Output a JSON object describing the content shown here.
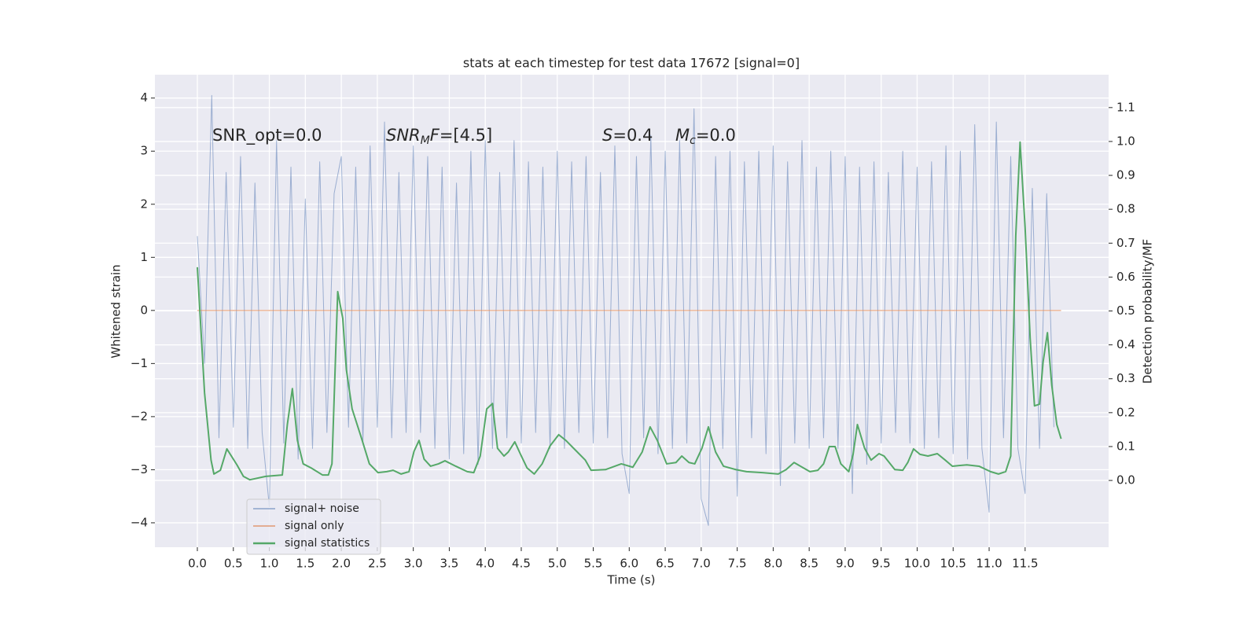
{
  "chart_data": {
    "type": "line",
    "title": "stats at each timestep for test data 17672 [signal=0]",
    "xlabel": "Time (s)",
    "ylabel": "Whitened strain",
    "y2label": "Detection probability/MF",
    "grid": true,
    "legend": "lower left",
    "xlim": [
      -0.59,
      12.66
    ],
    "ylim": [
      -4.46,
      4.44
    ],
    "y2lim": [
      -0.197,
      1.197
    ],
    "xticks": [
      {
        "value": 0,
        "label": "0.0"
      },
      {
        "value": 0.5,
        "label": "0.5"
      },
      {
        "value": 1,
        "label": "1.0"
      },
      {
        "value": 1.5,
        "label": "1.5"
      },
      {
        "value": 2,
        "label": "2.0"
      },
      {
        "value": 2.5,
        "label": "2.5"
      },
      {
        "value": 3,
        "label": "3.0"
      },
      {
        "value": 3.5,
        "label": "3.5"
      },
      {
        "value": 4,
        "label": "4.0"
      },
      {
        "value": 4.5,
        "label": "4.5"
      },
      {
        "value": 5,
        "label": "5.0"
      },
      {
        "value": 5.5,
        "label": "5.5"
      },
      {
        "value": 6,
        "label": "6.0"
      },
      {
        "value": 6.5,
        "label": "6.5"
      },
      {
        "value": 7,
        "label": "7.0"
      },
      {
        "value": 7.5,
        "label": "7.5"
      },
      {
        "value": 8,
        "label": "8.0"
      },
      {
        "value": 8.5,
        "label": "8.5"
      },
      {
        "value": 9,
        "label": "9.0"
      },
      {
        "value": 9.5,
        "label": "9.5"
      },
      {
        "value": 10,
        "label": "10.0"
      },
      {
        "value": 10.5,
        "label": "10.5"
      },
      {
        "value": 11,
        "label": "11.0"
      },
      {
        "value": 11.5,
        "label": "11.5"
      }
    ],
    "yticks": [
      {
        "value": -4,
        "label": "−4"
      },
      {
        "value": -3,
        "label": "−3"
      },
      {
        "value": -2,
        "label": "−2"
      },
      {
        "value": -1,
        "label": "−1"
      },
      0,
      1,
      2,
      3,
      4
    ],
    "y2ticks": [
      {
        "value": 0,
        "label": "0.0"
      },
      {
        "value": 0.1,
        "label": "0.1"
      },
      {
        "value": 0.2,
        "label": "0.2"
      },
      {
        "value": 0.3,
        "label": "0.3"
      },
      {
        "value": 0.4,
        "label": "0.4"
      },
      {
        "value": 0.5,
        "label": "0.5"
      },
      {
        "value": 0.6,
        "label": "0.6"
      },
      {
        "value": 0.7,
        "label": "0.7"
      },
      {
        "value": 0.8,
        "label": "0.8"
      },
      {
        "value": 0.9,
        "label": "0.9"
      },
      {
        "value": 1,
        "label": "1.0"
      },
      {
        "value": 1.1,
        "label": "1.1"
      }
    ],
    "annotations": [
      [
        {
          "text": "SNR_opt=0.0"
        }
      ],
      [
        {
          "text": "SNR",
          "style": "math"
        },
        {
          "text": "M",
          "style": "sub"
        },
        {
          "text": "F",
          "style": "math"
        },
        {
          "text": "=[4.5]"
        }
      ],
      [
        {
          "text": "S",
          "style": "math"
        },
        {
          "text": "=0.4"
        }
      ],
      [
        {
          "text": "M",
          "style": "math"
        },
        {
          "text": "c",
          "style": "sub"
        },
        {
          "text": "=0.0"
        }
      ]
    ],
    "series": [
      {
        "name": "signal+ noise",
        "color": "#4c72b0",
        "axis": "y",
        "x": [
          0,
          0.1,
          0.2,
          0.3,
          0.4,
          0.5,
          0.6,
          0.7,
          0.8,
          0.9,
          1,
          1.1,
          1.2,
          1.3,
          1.4,
          1.5,
          1.6,
          1.7,
          1.8,
          1.9,
          2,
          2.1,
          2.2,
          2.3,
          2.4,
          2.5,
          2.6,
          2.7,
          2.8,
          2.9,
          3,
          3.1,
          3.2,
          3.3,
          3.4,
          3.5,
          3.6,
          3.7,
          3.8,
          3.9,
          4,
          4.1,
          4.2,
          4.3,
          4.4,
          4.5,
          4.6,
          4.7,
          4.8,
          4.9,
          5,
          5.1,
          5.2,
          5.3,
          5.4,
          5.5,
          5.6,
          5.7,
          5.8,
          5.9,
          6,
          6.1,
          6.2,
          6.3,
          6.4,
          6.5,
          6.6,
          6.7,
          6.8,
          6.9,
          7,
          7.1,
          7.2,
          7.3,
          7.4,
          7.5,
          7.6,
          7.7,
          7.8,
          7.9,
          8,
          8.1,
          8.2,
          8.3,
          8.4,
          8.5,
          8.6,
          8.7,
          8.8,
          8.9,
          9,
          9.1,
          9.2,
          9.3,
          9.4,
          9.5,
          9.6,
          9.7,
          9.8,
          9.9,
          10,
          10.1,
          10.2,
          10.3,
          10.4,
          10.5,
          10.6,
          10.7,
          10.8,
          10.9,
          11,
          11.1,
          11.2,
          11.3,
          11.4,
          11.5,
          11.6,
          11.7,
          11.8,
          11.9
        ],
        "values": [
          1.4,
          -1.0,
          4.05,
          -2.4,
          2.6,
          -2.2,
          2.9,
          -2.6,
          2.4,
          -2.3,
          -3.7,
          3.2,
          -2.5,
          2.7,
          -2.8,
          2.1,
          -2.6,
          2.8,
          -2.3,
          2.2,
          2.9,
          -2.2,
          2.7,
          -2.5,
          3.1,
          -2.2,
          3.55,
          -2.4,
          2.6,
          -2.3,
          3.1,
          -2.3,
          2.9,
          -2.6,
          2.7,
          -2.8,
          2.4,
          -2.7,
          3.0,
          -2.9,
          3.2,
          -2.6,
          2.6,
          -2.4,
          3.2,
          -2.5,
          2.8,
          -2.3,
          2.7,
          -2.6,
          3.0,
          -2.6,
          2.8,
          -2.3,
          2.9,
          -2.5,
          2.6,
          -2.4,
          3.1,
          -2.7,
          -3.45,
          2.9,
          -2.4,
          3.3,
          -2.7,
          3.0,
          -2.6,
          3.2,
          -2.5,
          3.8,
          -3.55,
          -4.05,
          2.9,
          -2.6,
          3.0,
          -3.5,
          2.8,
          -2.4,
          3.0,
          -2.7,
          3.1,
          -3.3,
          2.8,
          -2.5,
          3.2,
          -2.6,
          2.7,
          -2.4,
          3.0,
          -2.6,
          2.9,
          -3.45,
          2.7,
          -2.9,
          2.8,
          -2.5,
          2.6,
          -2.3,
          3.0,
          -2.5,
          2.7,
          -2.6,
          2.8,
          -2.4,
          3.1,
          -2.7,
          3.0,
          -2.8,
          3.5,
          -2.6,
          -3.8,
          3.55,
          -2.4,
          2.9,
          -2.6,
          -3.45,
          2.3,
          -2.6,
          2.2,
          -2.2
        ]
      },
      {
        "name": "signal only",
        "color": "#dd8452",
        "axis": "y",
        "x": [
          0,
          12.0
        ],
        "values": [
          0,
          0
        ]
      },
      {
        "name": "signal statistics",
        "color": "#55a868",
        "axis": "y2",
        "x": [
          0,
          0.1,
          0.19,
          0.23,
          0.32,
          0.41,
          0.55,
          0.64,
          0.73,
          0.95,
          1.18,
          1.25,
          1.32,
          1.39,
          1.47,
          1.58,
          1.74,
          1.82,
          1.87,
          1.95,
          2.02,
          2.07,
          2.15,
          2.28,
          2.39,
          2.51,
          2.63,
          2.72,
          2.83,
          2.94,
          3.01,
          3.08,
          3.15,
          3.24,
          3.35,
          3.44,
          3.59,
          3.75,
          3.84,
          3.93,
          4.02,
          4.1,
          4.17,
          4.26,
          4.32,
          4.41,
          4.49,
          4.58,
          4.68,
          4.79,
          4.9,
          5.02,
          5.12,
          5.25,
          5.39,
          5.47,
          5.67,
          5.89,
          6.05,
          6.18,
          6.29,
          6.39,
          6.52,
          6.65,
          6.73,
          6.83,
          6.91,
          7.01,
          7.1,
          7.2,
          7.31,
          7.48,
          7.63,
          7.85,
          8.07,
          8.18,
          8.29,
          8.42,
          8.51,
          8.62,
          8.7,
          8.78,
          8.86,
          8.94,
          9.05,
          9.11,
          9.17,
          9.27,
          9.36,
          9.47,
          9.54,
          9.69,
          9.8,
          9.87,
          9.95,
          10.04,
          10.15,
          10.28,
          10.39,
          10.49,
          10.58,
          10.69,
          10.86,
          11.02,
          11.13,
          11.23,
          11.3,
          11.37,
          11.43,
          11.5,
          11.57,
          11.63,
          11.7,
          11.75,
          11.81,
          11.87,
          11.94,
          12.0
        ],
        "values": [
          0.629,
          0.258,
          0.06,
          0.019,
          0.03,
          0.093,
          0.046,
          0.012,
          0.002,
          0.012,
          0.016,
          0.165,
          0.271,
          0.118,
          0.049,
          0.037,
          0.016,
          0.016,
          0.049,
          0.557,
          0.478,
          0.327,
          0.211,
          0.125,
          0.049,
          0.023,
          0.026,
          0.03,
          0.019,
          0.026,
          0.086,
          0.118,
          0.063,
          0.042,
          0.049,
          0.058,
          0.042,
          0.026,
          0.023,
          0.072,
          0.211,
          0.227,
          0.095,
          0.072,
          0.084,
          0.114,
          0.077,
          0.037,
          0.019,
          0.049,
          0.102,
          0.135,
          0.118,
          0.09,
          0.06,
          0.03,
          0.032,
          0.049,
          0.039,
          0.084,
          0.158,
          0.118,
          0.049,
          0.053,
          0.072,
          0.053,
          0.049,
          0.095,
          0.158,
          0.084,
          0.042,
          0.032,
          0.026,
          0.023,
          0.019,
          0.032,
          0.053,
          0.037,
          0.026,
          0.03,
          0.049,
          0.1,
          0.1,
          0.049,
          0.026,
          0.077,
          0.165,
          0.095,
          0.06,
          0.079,
          0.072,
          0.032,
          0.03,
          0.053,
          0.093,
          0.077,
          0.072,
          0.079,
          0.06,
          0.042,
          0.044,
          0.046,
          0.042,
          0.026,
          0.019,
          0.026,
          0.072,
          0.722,
          0.998,
          0.745,
          0.42,
          0.22,
          0.225,
          0.35,
          0.436,
          0.281,
          0.165,
          0.123
        ]
      }
    ]
  }
}
